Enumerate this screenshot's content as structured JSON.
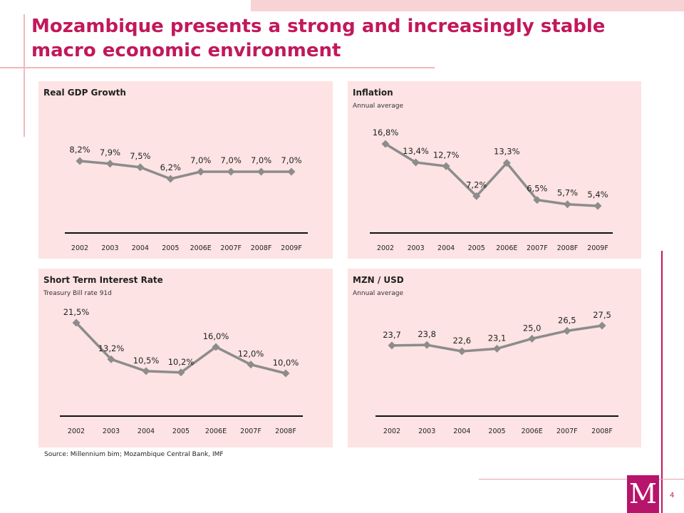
{
  "page": {
    "title": "Mozambique presents a strong and increasingly  stable macro economic environment",
    "source": "Source: Millennium bim; Mozambique Central Bank, IMF",
    "page_number": "4",
    "logo_letter": "M",
    "accent_color": "#c2185b",
    "panel_color": "#fde3e3",
    "line_color": "#8c8c8c"
  },
  "chart_data": [
    {
      "id": "gdp",
      "type": "line",
      "title": "Real GDP Growth",
      "subtitle": "",
      "categories": [
        "2002",
        "2003",
        "2004",
        "2005",
        "2006E",
        "2007F",
        "2008F",
        "2009F"
      ],
      "values": [
        8.2,
        7.9,
        7.5,
        6.2,
        7.0,
        7.0,
        7.0,
        7.0
      ],
      "labels": [
        "8,2%",
        "7,9%",
        "7,5%",
        "6,2%",
        "7,0%",
        "7,0%",
        "7,0%",
        "7,0%"
      ],
      "grid": false,
      "legend": "none"
    },
    {
      "id": "inflation",
      "type": "line",
      "title": "Inflation",
      "subtitle": "Annual average",
      "categories": [
        "2002",
        "2003",
        "2004",
        "2005",
        "2006E",
        "2007F",
        "2008F",
        "2009F"
      ],
      "values": [
        16.8,
        13.4,
        12.7,
        7.2,
        13.3,
        6.5,
        5.7,
        5.4
      ],
      "labels": [
        "16,8%",
        "13,4%",
        "12,7%",
        "7,2%",
        "13,3%",
        "6,5%",
        "5,7%",
        "5,4%"
      ],
      "grid": false,
      "legend": "none"
    },
    {
      "id": "interest",
      "type": "line",
      "title": "Short Term Interest Rate",
      "subtitle": "Treasury Bill rate 91d",
      "categories": [
        "2002",
        "2003",
        "2004",
        "2005",
        "2006E",
        "2007F",
        "2008F"
      ],
      "values": [
        21.5,
        13.2,
        10.5,
        10.2,
        16.0,
        12.0,
        10.0
      ],
      "labels": [
        "21,5%",
        "13,2%",
        "10,5%",
        "10,2%",
        "16,0%",
        "12,0%",
        "10,0%"
      ],
      "grid": false,
      "legend": "none"
    },
    {
      "id": "fx",
      "type": "line",
      "title": "MZN / USD",
      "subtitle": "Annual average",
      "categories": [
        "2002",
        "2003",
        "2004",
        "2005",
        "2006E",
        "2007F",
        "2008F"
      ],
      "values": [
        23.7,
        23.8,
        22.6,
        23.1,
        25.0,
        26.5,
        27.5
      ],
      "labels": [
        "23,7",
        "23,8",
        "22,6",
        "23,1",
        "25,0",
        "26,5",
        "27,5"
      ],
      "grid": false,
      "legend": "none"
    }
  ]
}
